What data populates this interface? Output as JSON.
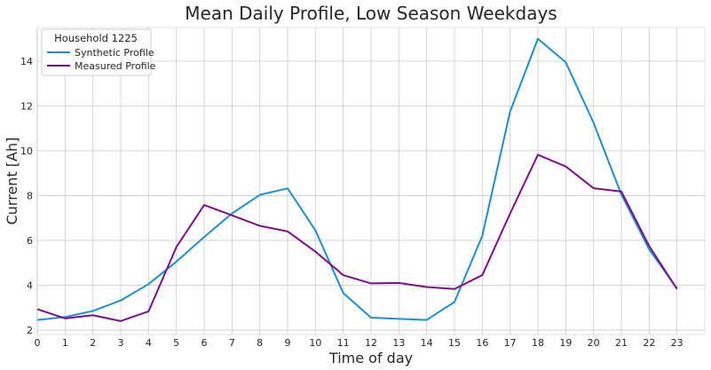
{
  "chart_data": {
    "type": "line",
    "title": "Mean Daily Profile, Low Season Weekdays",
    "xlabel": "Time of day",
    "ylabel": "Current [Ah]",
    "x": [
      0,
      1,
      2,
      3,
      4,
      5,
      6,
      7,
      8,
      9,
      10,
      11,
      12,
      13,
      14,
      15,
      16,
      17,
      18,
      19,
      20,
      21,
      22,
      23
    ],
    "xticks": [
      "0",
      "1",
      "2",
      "3",
      "4",
      "5",
      "6",
      "7",
      "8",
      "9",
      "10",
      "11",
      "12",
      "13",
      "14",
      "15",
      "16",
      "17",
      "18",
      "19",
      "20",
      "21",
      "22",
      "23"
    ],
    "yticks": [
      "2",
      "4",
      "6",
      "8",
      "10",
      "12",
      "14"
    ],
    "ytick_values": [
      2,
      4,
      6,
      8,
      10,
      12,
      14
    ],
    "xlim": [
      0,
      24
    ],
    "ylim": [
      1.8,
      15.5
    ],
    "grid": true,
    "legend": {
      "title": "Household 1225",
      "position": "top-left"
    },
    "series": [
      {
        "name": "Synthetic Profile",
        "color": "#1f8fcf",
        "values": [
          2.45,
          2.58,
          2.85,
          3.32,
          4.05,
          5.05,
          6.15,
          7.2,
          8.03,
          8.32,
          6.45,
          3.65,
          2.55,
          2.5,
          2.45,
          3.25,
          6.2,
          11.75,
          15.0,
          13.95,
          11.25,
          8.05,
          5.6,
          3.85
        ]
      },
      {
        "name": "Measured Profile",
        "color": "#7b0f8a",
        "values": [
          2.93,
          2.52,
          2.66,
          2.4,
          2.83,
          5.7,
          7.58,
          7.12,
          6.65,
          6.4,
          5.5,
          4.45,
          4.08,
          4.1,
          3.92,
          3.83,
          4.45,
          7.2,
          9.82,
          9.3,
          8.33,
          8.18,
          5.75,
          3.83
        ]
      }
    ]
  }
}
